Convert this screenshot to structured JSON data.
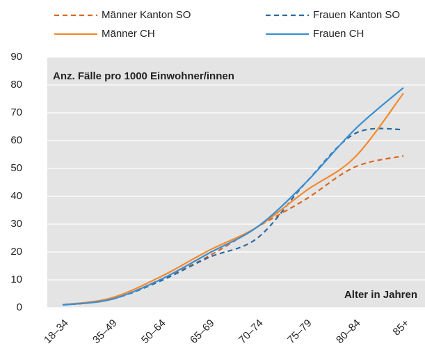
{
  "chart_data": {
    "type": "line",
    "annotations": [
      "Anz. Fälle pro 1000 Einwohner/innen",
      "Alter in Jahren"
    ],
    "categories": [
      "18–34",
      "35–49",
      "50–64",
      "65–69",
      "70–74",
      "75–79",
      "80–84",
      "85+"
    ],
    "series": [
      {
        "name": "Männer Kanton SO",
        "color": "#d8661f",
        "dashed": true,
        "values": [
          1,
          3,
          10,
          18.5,
          29,
          39,
          50.5,
          54.5
        ]
      },
      {
        "name": "Frauen Kanton SO",
        "color": "#2a6aa3",
        "dashed": true,
        "values": [
          1,
          3,
          9.5,
          18,
          25,
          45,
          62.5,
          64
        ]
      },
      {
        "name": "Männer CH",
        "color": "#f28a2e",
        "dashed": false,
        "values": [
          1,
          3.5,
          11,
          20.5,
          29,
          42,
          54,
          77
        ]
      },
      {
        "name": "Frauen CH",
        "color": "#3a8fd1",
        "dashed": false,
        "values": [
          1,
          3,
          10,
          19.5,
          29,
          45,
          64,
          79
        ]
      }
    ],
    "ylim": [
      0,
      90
    ],
    "yticks": [
      0,
      10,
      20,
      30,
      40,
      50,
      60,
      70,
      80,
      90
    ],
    "grid": true
  }
}
